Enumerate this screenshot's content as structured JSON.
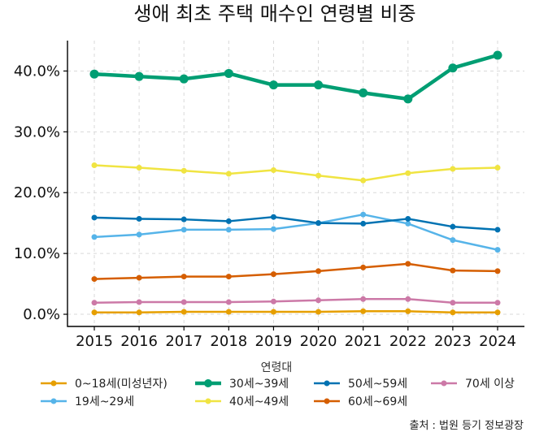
{
  "chart_data": {
    "type": "line",
    "title": "생애 최초 주택 매수인 연령별 비중",
    "xlabel": "",
    "ylabel": "",
    "x": [
      2015,
      2016,
      2017,
      2018,
      2019,
      2020,
      2021,
      2022,
      2023,
      2024
    ],
    "x_tick_labels": [
      "2015",
      "2016",
      "2017",
      "2018",
      "2019",
      "2020",
      "2021",
      "2022",
      "2023",
      "2024"
    ],
    "ylim": [
      -2,
      45
    ],
    "y_ticks": [
      0,
      10,
      20,
      30,
      40
    ],
    "y_tick_labels": [
      "0.0%",
      "10.0%",
      "20.0%",
      "30.0%",
      "40.0%"
    ],
    "grid": true,
    "legend_title": "연령대",
    "legend_placement": "bottom",
    "series": [
      {
        "name": "0~18세(미성년자)",
        "color": "#E69F00",
        "values": [
          0.3,
          0.3,
          0.4,
          0.4,
          0.4,
          0.4,
          0.5,
          0.5,
          0.3,
          0.3
        ]
      },
      {
        "name": "19세~29세",
        "color": "#56B4E9",
        "values": [
          12.7,
          13.1,
          13.9,
          13.9,
          14.0,
          15.0,
          16.4,
          14.9,
          12.2,
          10.6
        ]
      },
      {
        "name": "30세~39세",
        "color": "#009E73",
        "values": [
          39.5,
          39.1,
          38.7,
          39.6,
          37.7,
          37.7,
          36.4,
          35.4,
          40.5,
          42.6
        ]
      },
      {
        "name": "40세~49세",
        "color": "#F0E442",
        "values": [
          24.5,
          24.1,
          23.6,
          23.1,
          23.7,
          22.8,
          22.0,
          23.2,
          23.9,
          24.1
        ]
      },
      {
        "name": "50세~59세",
        "color": "#0072B2",
        "values": [
          15.9,
          15.7,
          15.6,
          15.3,
          16.0,
          15.0,
          14.9,
          15.7,
          14.4,
          13.9
        ]
      },
      {
        "name": "60세~69세",
        "color": "#D55E00",
        "values": [
          5.8,
          6.0,
          6.2,
          6.2,
          6.6,
          7.1,
          7.7,
          8.3,
          7.2,
          7.1
        ]
      },
      {
        "name": "70세 이상",
        "color": "#CC79A7",
        "values": [
          1.9,
          2.0,
          2.0,
          2.0,
          2.1,
          2.3,
          2.5,
          2.5,
          1.9,
          1.9
        ]
      }
    ],
    "highlight_series": "30세~39세",
    "source": "출처 : 법원 등기 정보광장"
  }
}
